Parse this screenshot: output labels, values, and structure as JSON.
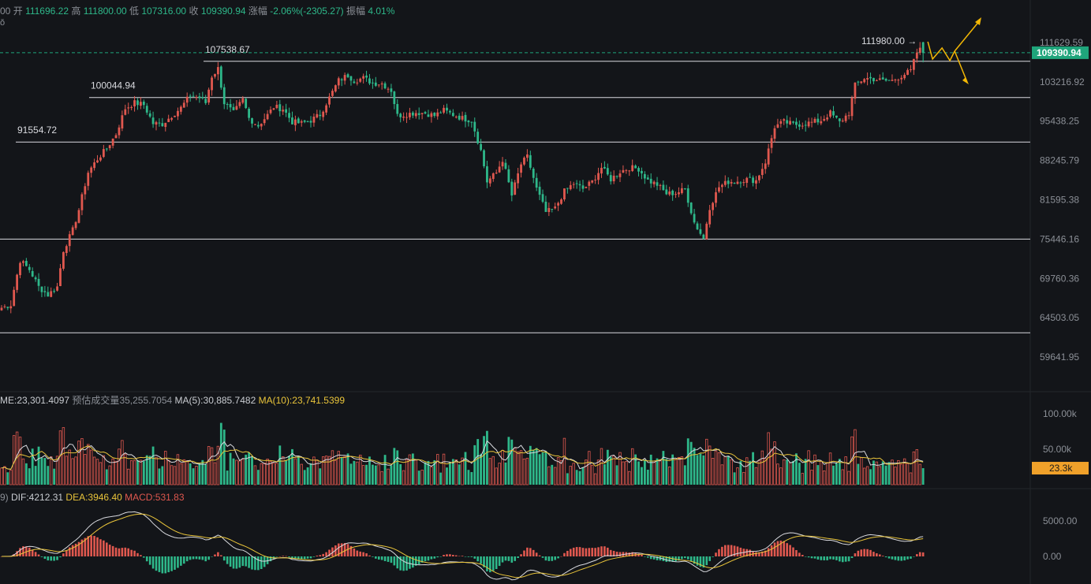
{
  "ohlc_header": {
    "prefix": "00",
    "open_label": "开",
    "open": "111696.22",
    "high_label": "高",
    "high": "111800.00",
    "low_label": "低",
    "low": "107316.00",
    "close_label": "收",
    "close": "109390.94",
    "change_label": "涨幅",
    "change": "-2.06%(-2305.27)",
    "amplitude_label": "振幅",
    "amplitude": "4.01%"
  },
  "header_fragment": "ǒ",
  "volume_header": {
    "vol": "ME:23,301.4097",
    "est_label": "预估成交量",
    "est": "35,255.7054",
    "ma5": "MA(5):30,885.7482",
    "ma10": "MA(10):23,741.5399"
  },
  "macd_header": {
    "prefix": "9)",
    "dif": "DIF:4212.31",
    "dea": "DEA:3946.40",
    "macd": "MACD:531.83"
  },
  "colors": {
    "background": "#131519",
    "up": "#e0584f",
    "down": "#2eb88a",
    "price_label_bg": "#1fa57b",
    "volume_label_bg": "#f0a12a",
    "ma5": "#d9dadf",
    "ma10": "#e9c43a",
    "arrow": "#f2b705"
  },
  "chart_data": {
    "type": "candlestick",
    "price_axis_ticks": [
      "111629.59",
      "103216.92",
      "95438.25",
      "88245.79",
      "81595.38",
      "75446.16",
      "69760.36",
      "64503.05",
      "59641.95"
    ],
    "price_axis_values": [
      111629.59,
      103216.92,
      95438.25,
      88245.79,
      81595.38,
      75446.16,
      69760.36,
      64503.05,
      59641.95
    ],
    "last_price": "109390.94",
    "horizontal_lines": [
      {
        "price": 107538.67,
        "label": "107538.67"
      },
      {
        "price": 100044.94,
        "label": "100044.94"
      },
      {
        "price": 91554.72,
        "label": "91554.72"
      },
      {
        "price": 75446.16,
        "label": ""
      },
      {
        "price": 62600,
        "label": ""
      }
    ],
    "high_marker": {
      "price": 111980.0,
      "label": "111980.00"
    },
    "volume_axis_ticks": [
      "100.00k",
      "50.00k"
    ],
    "volume_axis_values": [
      100000,
      50000
    ],
    "volume_last": "23.3k",
    "macd_axis_ticks": [
      "5000.00",
      "0.00"
    ],
    "macd_axis_values": [
      5000,
      0
    ],
    "projection": "zigzag up-right then two arrows (one up, one down)",
    "anchors": [
      [
        0,
        65800
      ],
      [
        3,
        66200
      ],
      [
        6,
        72300
      ],
      [
        9,
        71000
      ],
      [
        12,
        68600
      ],
      [
        15,
        67500
      ],
      [
        18,
        68600
      ],
      [
        20,
        73800
      ],
      [
        23,
        76800
      ],
      [
        25,
        80000
      ],
      [
        28,
        86200
      ],
      [
        31,
        88500
      ],
      [
        34,
        90400
      ],
      [
        37,
        93000
      ],
      [
        40,
        97900
      ],
      [
        43,
        99000
      ],
      [
        46,
        98600
      ],
      [
        49,
        95000
      ],
      [
        52,
        94900
      ],
      [
        55,
        96500
      ],
      [
        58,
        98000
      ],
      [
        61,
        100500
      ],
      [
        64,
        100000
      ],
      [
        66,
        99000
      ],
      [
        68,
        104400
      ],
      [
        70,
        106000
      ],
      [
        72,
        99000
      ],
      [
        75,
        97000
      ],
      [
        78,
        99600
      ],
      [
        80,
        96000
      ],
      [
        83,
        94600
      ],
      [
        86,
        96600
      ],
      [
        88,
        98200
      ],
      [
        91,
        97800
      ],
      [
        94,
        95300
      ],
      [
        97,
        95000
      ],
      [
        100,
        95600
      ],
      [
        103,
        96700
      ],
      [
        106,
        100000
      ],
      [
        109,
        103500
      ],
      [
        112,
        104600
      ],
      [
        114,
        103500
      ],
      [
        117,
        104000
      ],
      [
        120,
        103000
      ],
      [
        123,
        102900
      ],
      [
        126,
        101500
      ],
      [
        128,
        96500
      ],
      [
        131,
        96800
      ],
      [
        134,
        97100
      ],
      [
        137,
        97000
      ],
      [
        140,
        96500
      ],
      [
        143,
        97500
      ],
      [
        146,
        96700
      ],
      [
        149,
        96000
      ],
      [
        152,
        95600
      ],
      [
        155,
        90000
      ],
      [
        157,
        84600
      ],
      [
        160,
        86100
      ],
      [
        162,
        88400
      ],
      [
        165,
        82300
      ],
      [
        168,
        87600
      ],
      [
        170,
        88900
      ],
      [
        173,
        83400
      ],
      [
        176,
        79600
      ],
      [
        179,
        80200
      ],
      [
        182,
        83000
      ],
      [
        185,
        84300
      ],
      [
        188,
        83400
      ],
      [
        191,
        84600
      ],
      [
        194,
        87000
      ],
      [
        197,
        85000
      ],
      [
        200,
        86300
      ],
      [
        203,
        87000
      ],
      [
        206,
        86800
      ],
      [
        209,
        84800
      ],
      [
        212,
        84100
      ],
      [
        215,
        82600
      ],
      [
        218,
        82700
      ],
      [
        221,
        83300
      ],
      [
        224,
        78000
      ],
      [
        227,
        75500
      ],
      [
        229,
        80400
      ],
      [
        232,
        83700
      ],
      [
        235,
        84600
      ],
      [
        238,
        84700
      ],
      [
        241,
        85000
      ],
      [
        244,
        84800
      ],
      [
        247,
        88000
      ],
      [
        250,
        94400
      ],
      [
        253,
        95300
      ],
      [
        256,
        94800
      ],
      [
        259,
        94900
      ],
      [
        262,
        95200
      ],
      [
        265,
        95600
      ],
      [
        268,
        97000
      ],
      [
        271,
        95200
      ],
      [
        274,
        97000
      ],
      [
        276,
        102500
      ],
      [
        279,
        104000
      ],
      [
        282,
        103800
      ],
      [
        285,
        103400
      ],
      [
        288,
        103500
      ],
      [
        291,
        104500
      ],
      [
        294,
        105500
      ],
      [
        296,
        109500
      ],
      [
        298,
        110500
      ]
    ]
  }
}
